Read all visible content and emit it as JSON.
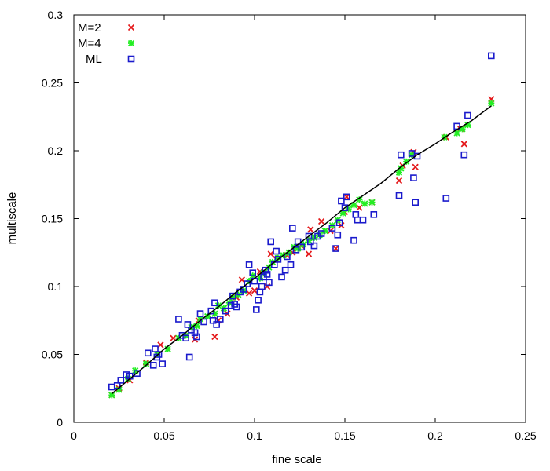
{
  "chart_data": {
    "type": "scatter",
    "title": "",
    "xlabel": "fine scale",
    "ylabel": "multiscale",
    "xlim": [
      0,
      0.25
    ],
    "ylim": [
      0,
      0.3
    ],
    "xticks": [
      "0",
      "0.05",
      "0.1",
      "0.15",
      "0.2",
      "0.25"
    ],
    "yticks": [
      "0",
      "0.05",
      "0.1",
      "0.15",
      "0.2",
      "0.25",
      "0.3"
    ],
    "grid": false,
    "legend_position": "top-left",
    "series": [
      {
        "name": "M=2",
        "marker": "x",
        "color": "#e41a1c",
        "points": [
          [
            0.021,
            0.02
          ],
          [
            0.025,
            0.025
          ],
          [
            0.031,
            0.031
          ],
          [
            0.04,
            0.044
          ],
          [
            0.048,
            0.057
          ],
          [
            0.055,
            0.062
          ],
          [
            0.062,
            0.064
          ],
          [
            0.067,
            0.061
          ],
          [
            0.069,
            0.075
          ],
          [
            0.078,
            0.063
          ],
          [
            0.08,
            0.075
          ],
          [
            0.085,
            0.08
          ],
          [
            0.09,
            0.092
          ],
          [
            0.093,
            0.105
          ],
          [
            0.097,
            0.095
          ],
          [
            0.1,
            0.097
          ],
          [
            0.103,
            0.111
          ],
          [
            0.107,
            0.1
          ],
          [
            0.109,
            0.124
          ],
          [
            0.112,
            0.12
          ],
          [
            0.118,
            0.123
          ],
          [
            0.121,
            0.125
          ],
          [
            0.126,
            0.13
          ],
          [
            0.13,
            0.124
          ],
          [
            0.131,
            0.142
          ],
          [
            0.137,
            0.148
          ],
          [
            0.142,
            0.141
          ],
          [
            0.145,
            0.128
          ],
          [
            0.148,
            0.145
          ],
          [
            0.15,
            0.155
          ],
          [
            0.151,
            0.166
          ],
          [
            0.158,
            0.158
          ],
          [
            0.165,
            0.162
          ],
          [
            0.18,
            0.178
          ],
          [
            0.182,
            0.189
          ],
          [
            0.189,
            0.188
          ],
          [
            0.188,
            0.199
          ],
          [
            0.206,
            0.21
          ],
          [
            0.214,
            0.216
          ],
          [
            0.216,
            0.205
          ],
          [
            0.231,
            0.238
          ]
        ]
      },
      {
        "name": "M=4",
        "marker": "star",
        "color": "#22ee22",
        "points": [
          [
            0.021,
            0.02
          ],
          [
            0.025,
            0.024
          ],
          [
            0.03,
            0.032
          ],
          [
            0.034,
            0.038
          ],
          [
            0.04,
            0.043
          ],
          [
            0.046,
            0.05
          ],
          [
            0.052,
            0.054
          ],
          [
            0.058,
            0.062
          ],
          [
            0.062,
            0.064
          ],
          [
            0.065,
            0.07
          ],
          [
            0.068,
            0.071
          ],
          [
            0.07,
            0.076
          ],
          [
            0.074,
            0.078
          ],
          [
            0.078,
            0.08
          ],
          [
            0.08,
            0.086
          ],
          [
            0.083,
            0.084
          ],
          [
            0.086,
            0.088
          ],
          [
            0.088,
            0.092
          ],
          [
            0.091,
            0.094
          ],
          [
            0.094,
            0.097
          ],
          [
            0.097,
            0.104
          ],
          [
            0.099,
            0.108
          ],
          [
            0.103,
            0.106
          ],
          [
            0.105,
            0.11
          ],
          [
            0.108,
            0.114
          ],
          [
            0.11,
            0.118
          ],
          [
            0.113,
            0.121
          ],
          [
            0.116,
            0.123
          ],
          [
            0.119,
            0.125
          ],
          [
            0.122,
            0.129
          ],
          [
            0.124,
            0.128
          ],
          [
            0.127,
            0.131
          ],
          [
            0.13,
            0.134
          ],
          [
            0.133,
            0.136
          ],
          [
            0.136,
            0.138
          ],
          [
            0.139,
            0.141
          ],
          [
            0.143,
            0.145
          ],
          [
            0.146,
            0.149
          ],
          [
            0.149,
            0.154
          ],
          [
            0.152,
            0.157
          ],
          [
            0.155,
            0.16
          ],
          [
            0.158,
            0.164
          ],
          [
            0.161,
            0.161
          ],
          [
            0.165,
            0.162
          ],
          [
            0.18,
            0.184
          ],
          [
            0.181,
            0.187
          ],
          [
            0.184,
            0.192
          ],
          [
            0.187,
            0.197
          ],
          [
            0.205,
            0.21
          ],
          [
            0.212,
            0.213
          ],
          [
            0.215,
            0.216
          ],
          [
            0.218,
            0.219
          ],
          [
            0.231,
            0.235
          ]
        ]
      },
      {
        "name": "ML",
        "marker": "open-square",
        "color": "#1a1acc",
        "points": [
          [
            0.021,
            0.026
          ],
          [
            0.024,
            0.027
          ],
          [
            0.026,
            0.031
          ],
          [
            0.029,
            0.035
          ],
          [
            0.031,
            0.034
          ],
          [
            0.035,
            0.036
          ],
          [
            0.041,
            0.051
          ],
          [
            0.044,
            0.042
          ],
          [
            0.045,
            0.054
          ],
          [
            0.046,
            0.048
          ],
          [
            0.047,
            0.05
          ],
          [
            0.049,
            0.043
          ],
          [
            0.058,
            0.076
          ],
          [
            0.06,
            0.064
          ],
          [
            0.062,
            0.062
          ],
          [
            0.063,
            0.072
          ],
          [
            0.064,
            0.048
          ],
          [
            0.065,
            0.068
          ],
          [
            0.067,
            0.066
          ],
          [
            0.068,
            0.063
          ],
          [
            0.07,
            0.08
          ],
          [
            0.072,
            0.074
          ],
          [
            0.076,
            0.082
          ],
          [
            0.077,
            0.075
          ],
          [
            0.078,
            0.088
          ],
          [
            0.079,
            0.072
          ],
          [
            0.081,
            0.076
          ],
          [
            0.084,
            0.082
          ],
          [
            0.087,
            0.086
          ],
          [
            0.088,
            0.093
          ],
          [
            0.089,
            0.087
          ],
          [
            0.09,
            0.085
          ],
          [
            0.092,
            0.096
          ],
          [
            0.094,
            0.098
          ],
          [
            0.096,
            0.102
          ],
          [
            0.097,
            0.116
          ],
          [
            0.099,
            0.11
          ],
          [
            0.1,
            0.104
          ],
          [
            0.101,
            0.083
          ],
          [
            0.102,
            0.09
          ],
          [
            0.103,
            0.096
          ],
          [
            0.104,
            0.1
          ],
          [
            0.105,
            0.107
          ],
          [
            0.106,
            0.112
          ],
          [
            0.107,
            0.109
          ],
          [
            0.108,
            0.103
          ],
          [
            0.109,
            0.133
          ],
          [
            0.111,
            0.116
          ],
          [
            0.112,
            0.126
          ],
          [
            0.113,
            0.12
          ],
          [
            0.115,
            0.107
          ],
          [
            0.117,
            0.112
          ],
          [
            0.118,
            0.122
          ],
          [
            0.12,
            0.116
          ],
          [
            0.121,
            0.143
          ],
          [
            0.123,
            0.127
          ],
          [
            0.124,
            0.133
          ],
          [
            0.126,
            0.129
          ],
          [
            0.13,
            0.137
          ],
          [
            0.131,
            0.133
          ],
          [
            0.133,
            0.13
          ],
          [
            0.135,
            0.137
          ],
          [
            0.137,
            0.139
          ],
          [
            0.143,
            0.143
          ],
          [
            0.145,
            0.128
          ],
          [
            0.146,
            0.138
          ],
          [
            0.147,
            0.147
          ],
          [
            0.148,
            0.163
          ],
          [
            0.15,
            0.158
          ],
          [
            0.151,
            0.166
          ],
          [
            0.155,
            0.134
          ],
          [
            0.156,
            0.153
          ],
          [
            0.157,
            0.149
          ],
          [
            0.16,
            0.149
          ],
          [
            0.166,
            0.153
          ],
          [
            0.18,
            0.167
          ],
          [
            0.181,
            0.197
          ],
          [
            0.187,
            0.198
          ],
          [
            0.188,
            0.18
          ],
          [
            0.189,
            0.162
          ],
          [
            0.19,
            0.196
          ],
          [
            0.206,
            0.165
          ],
          [
            0.212,
            0.218
          ],
          [
            0.216,
            0.197
          ],
          [
            0.218,
            0.226
          ],
          [
            0.231,
            0.27
          ]
        ]
      },
      {
        "name": "",
        "marker": "line",
        "color": "#000000",
        "points": [
          [
            0.021,
            0.021
          ],
          [
            0.03,
            0.031
          ],
          [
            0.04,
            0.042
          ],
          [
            0.05,
            0.054
          ],
          [
            0.06,
            0.064
          ],
          [
            0.07,
            0.075
          ],
          [
            0.08,
            0.085
          ],
          [
            0.09,
            0.096
          ],
          [
            0.1,
            0.106
          ],
          [
            0.11,
            0.117
          ],
          [
            0.12,
            0.127
          ],
          [
            0.13,
            0.137
          ],
          [
            0.14,
            0.147
          ],
          [
            0.15,
            0.158
          ],
          [
            0.16,
            0.167
          ],
          [
            0.17,
            0.176
          ],
          [
            0.18,
            0.187
          ],
          [
            0.19,
            0.197
          ],
          [
            0.2,
            0.205
          ],
          [
            0.21,
            0.214
          ],
          [
            0.22,
            0.222
          ],
          [
            0.231,
            0.233
          ]
        ]
      }
    ]
  }
}
